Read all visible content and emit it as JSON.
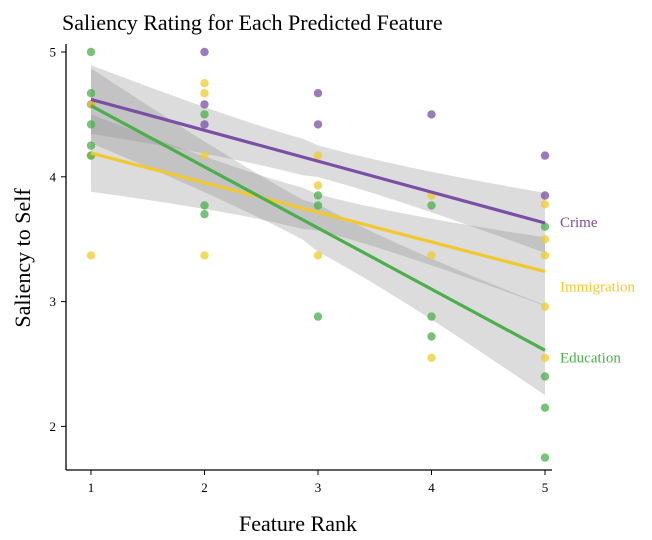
{
  "chart_data": {
    "type": "scatter",
    "title": "Saliency Rating for Each Predicted Feature",
    "xlabel": "Feature Rank",
    "ylabel": "Saliency to Self",
    "xlim": [
      0.8,
      5.3
    ],
    "ylim": [
      1.6,
      5.1
    ],
    "x_ticks": [
      1,
      2,
      3,
      4,
      5
    ],
    "y_ticks": [
      2,
      3,
      4,
      5
    ],
    "grid": false,
    "legend": "direct labels at right end of fit lines",
    "series": [
      {
        "name": "Crime",
        "color": "#7b4fa6",
        "fit": {
          "start": [
            1,
            4.62
          ],
          "end": [
            5,
            3.63
          ]
        },
        "ci": {
          "start_upper": 4.9,
          "start_lower": 4.35,
          "end_upper": 3.88,
          "end_lower": 3.4
        },
        "points": [
          [
            1,
            4.58
          ],
          [
            2,
            5.0
          ],
          [
            2,
            4.58
          ],
          [
            2,
            4.42
          ],
          [
            3,
            4.67
          ],
          [
            3,
            4.42
          ],
          [
            4,
            4.5
          ],
          [
            5,
            4.17
          ],
          [
            5,
            3.85
          ]
        ]
      },
      {
        "name": "Immigration",
        "color": "#f1c92f",
        "fit": {
          "start": [
            1,
            4.19
          ],
          "end": [
            5,
            3.24
          ]
        },
        "ci": {
          "start_upper": 4.5,
          "start_lower": 3.88,
          "end_upper": 3.5,
          "end_lower": 2.95
        },
        "points": [
          [
            1,
            4.58
          ],
          [
            1,
            4.17
          ],
          [
            1,
            3.37
          ],
          [
            2,
            4.75
          ],
          [
            2,
            4.67
          ],
          [
            2,
            4.17
          ],
          [
            2,
            3.37
          ],
          [
            3,
            4.17
          ],
          [
            3,
            3.93
          ],
          [
            3,
            3.37
          ],
          [
            4,
            3.85
          ],
          [
            4,
            3.37
          ],
          [
            4,
            2.55
          ],
          [
            5,
            3.78
          ],
          [
            5,
            3.5
          ],
          [
            5,
            3.37
          ],
          [
            5,
            2.96
          ],
          [
            5,
            2.55
          ]
        ]
      },
      {
        "name": "Education",
        "color": "#4cae4c",
        "fit": {
          "start": [
            1,
            4.57
          ],
          "end": [
            5,
            2.61
          ]
        },
        "ci": {
          "start_upper": 4.87,
          "start_lower": 4.27,
          "end_upper": 2.97,
          "end_lower": 2.25
        },
        "points": [
          [
            1,
            5.0
          ],
          [
            1,
            4.67
          ],
          [
            1,
            4.42
          ],
          [
            1,
            4.25
          ],
          [
            1,
            4.17
          ],
          [
            2,
            4.5
          ],
          [
            2,
            3.77
          ],
          [
            2,
            3.7
          ],
          [
            3,
            3.85
          ],
          [
            3,
            3.77
          ],
          [
            3,
            2.88
          ],
          [
            4,
            3.77
          ],
          [
            4,
            2.88
          ],
          [
            4,
            2.72
          ],
          [
            5,
            3.6
          ],
          [
            5,
            2.4
          ],
          [
            5,
            2.15
          ],
          [
            5,
            1.75
          ]
        ]
      }
    ]
  }
}
